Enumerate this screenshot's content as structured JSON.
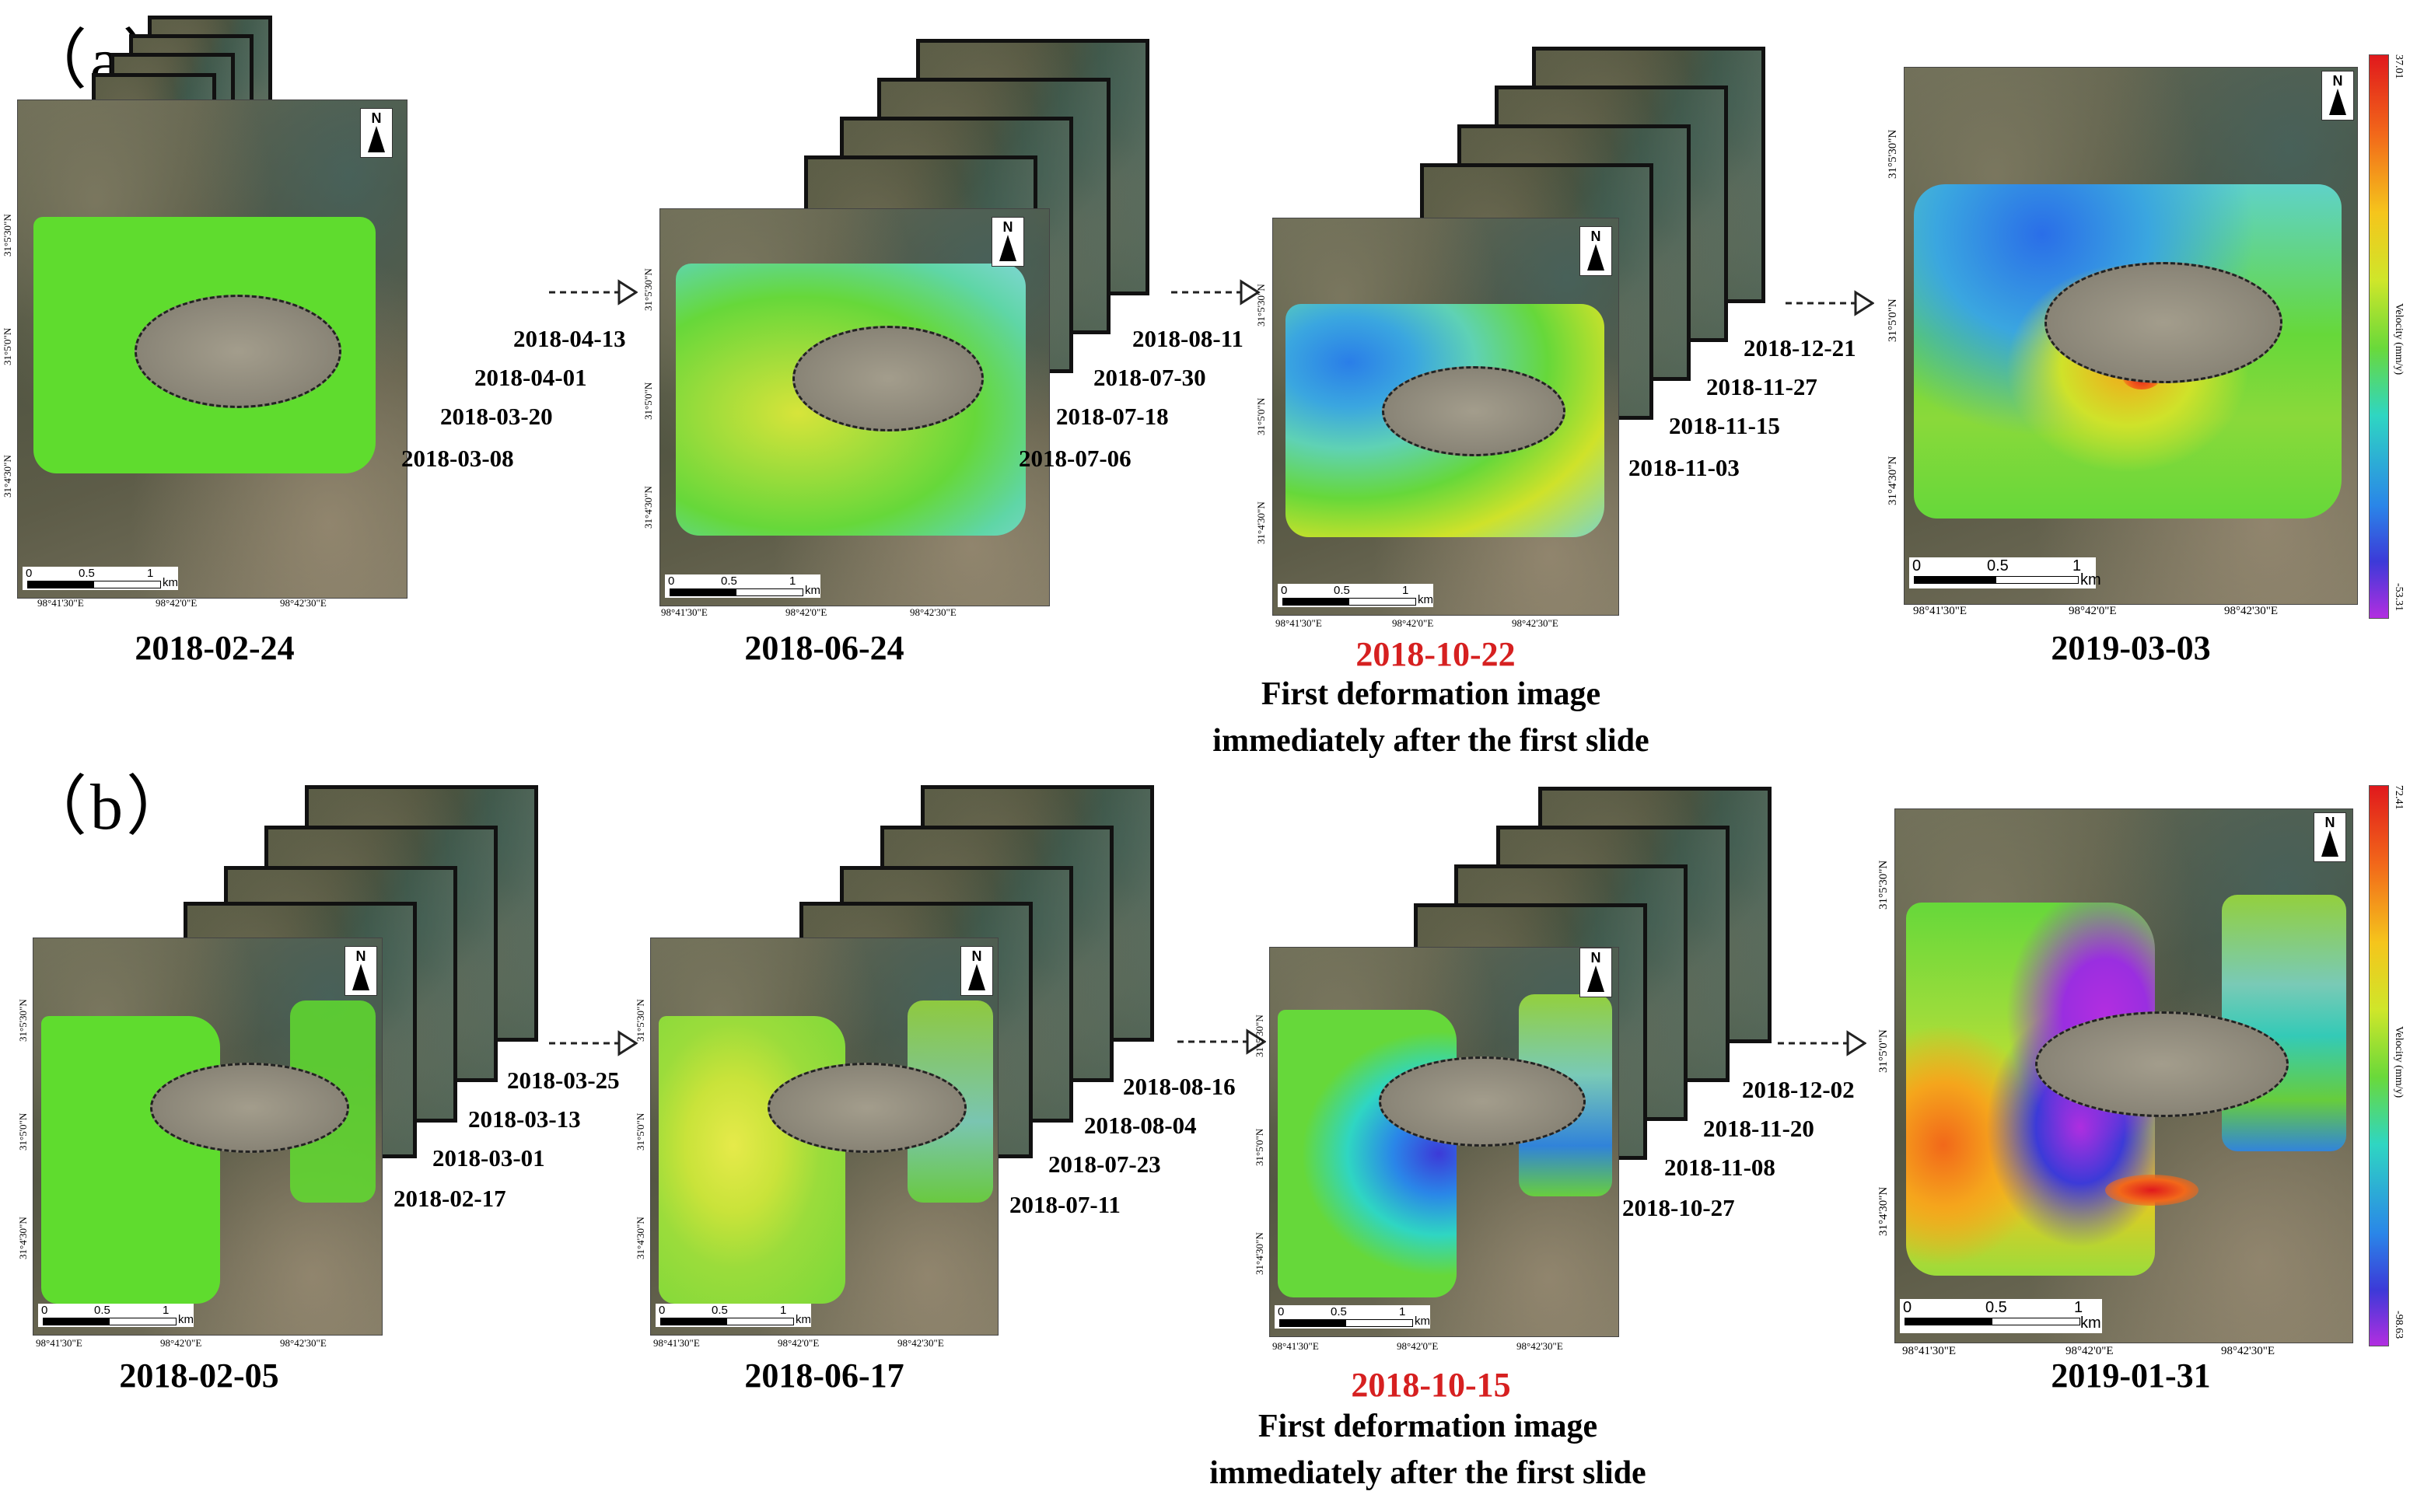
{
  "panels": {
    "a": {
      "label": "（a）",
      "groups": [
        {
          "main_date": "2018-02-24",
          "stack_dates": [
            "2018-04-13",
            "2018-04-01",
            "2018-03-20",
            "2018-03-08"
          ]
        },
        {
          "main_date": "2018-06-24",
          "stack_dates": [
            "2018-08-11",
            "2018-07-30",
            "2018-07-18",
            "2018-07-06"
          ]
        },
        {
          "main_date": "2018-10-22",
          "stack_dates": [
            "2018-12-21",
            "2018-11-27",
            "2018-11-15",
            "2018-11-03"
          ],
          "caption_line1": "First deformation image",
          "caption_line2": "immediately after the first slide"
        },
        {
          "main_date": "2019-03-03"
        }
      ],
      "colorbar": {
        "max": "37.01",
        "min": "-53.31",
        "title": "Velocity (mm/y)"
      }
    },
    "b": {
      "label": "（b）",
      "groups": [
        {
          "main_date": "2018-02-05",
          "stack_dates": [
            "2018-03-25",
            "2018-03-13",
            "2018-03-01",
            "2018-02-17"
          ]
        },
        {
          "main_date": "2018-06-17",
          "stack_dates": [
            "2018-08-16",
            "2018-08-04",
            "2018-07-23",
            "2018-07-11"
          ]
        },
        {
          "main_date": "2018-10-15",
          "stack_dates": [
            "2018-12-02",
            "2018-11-20",
            "2018-11-08",
            "2018-10-27"
          ],
          "caption_line1": "First deformation image",
          "caption_line2": "immediately after the first slide"
        },
        {
          "main_date": "2019-01-31"
        }
      ],
      "colorbar": {
        "max": "72.41",
        "min": "-98.63",
        "title": "Velocity (mm/y)"
      }
    }
  },
  "map_labels": {
    "north": "N",
    "scale_0": "0",
    "scale_mid": "0.5",
    "scale_1": "1",
    "scale_unit": "km",
    "lon_1": "98°41'30\"E",
    "lon_2": "98°42'0\"E",
    "lon_3": "98°42'30\"E",
    "lat_1": "31°5'30\"N",
    "lat_2": "31°5'0\"N",
    "lat_3": "31°4'30\"N"
  },
  "colors": {
    "highlight_date": "#d62020",
    "deformation_stable": "#5fdc2e",
    "deformation_positive": "#e8202a",
    "deformation_negative": "#9a2ee0"
  }
}
